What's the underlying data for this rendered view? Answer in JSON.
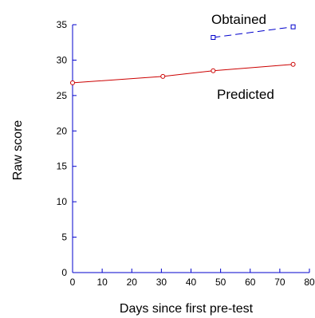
{
  "chart_data": {
    "type": "line",
    "xlabel": "Days since first pre-test",
    "ylabel": "Raw score",
    "xlim": [
      0,
      80
    ],
    "ylim": [
      0,
      35
    ],
    "xticks": [
      "0",
      "10",
      "20",
      "30",
      "40",
      "50",
      "60",
      "70",
      "80"
    ],
    "yticks": [
      "0",
      "5",
      "10",
      "15",
      "20",
      "25",
      "30",
      "35"
    ],
    "grid": false,
    "series": [
      {
        "name": "Predicted",
        "color": "#cc0000",
        "line_style": "solid",
        "marker": "circle",
        "x": [
          0,
          30.5,
          47.5,
          74.5
        ],
        "y": [
          26.8,
          27.7,
          28.5,
          29.4
        ]
      },
      {
        "name": "Obtained",
        "color": "#0000cc",
        "line_style": "dashed",
        "marker": "square",
        "x": [
          47.5,
          74.5
        ],
        "y": [
          33.2,
          34.7
        ]
      }
    ]
  }
}
